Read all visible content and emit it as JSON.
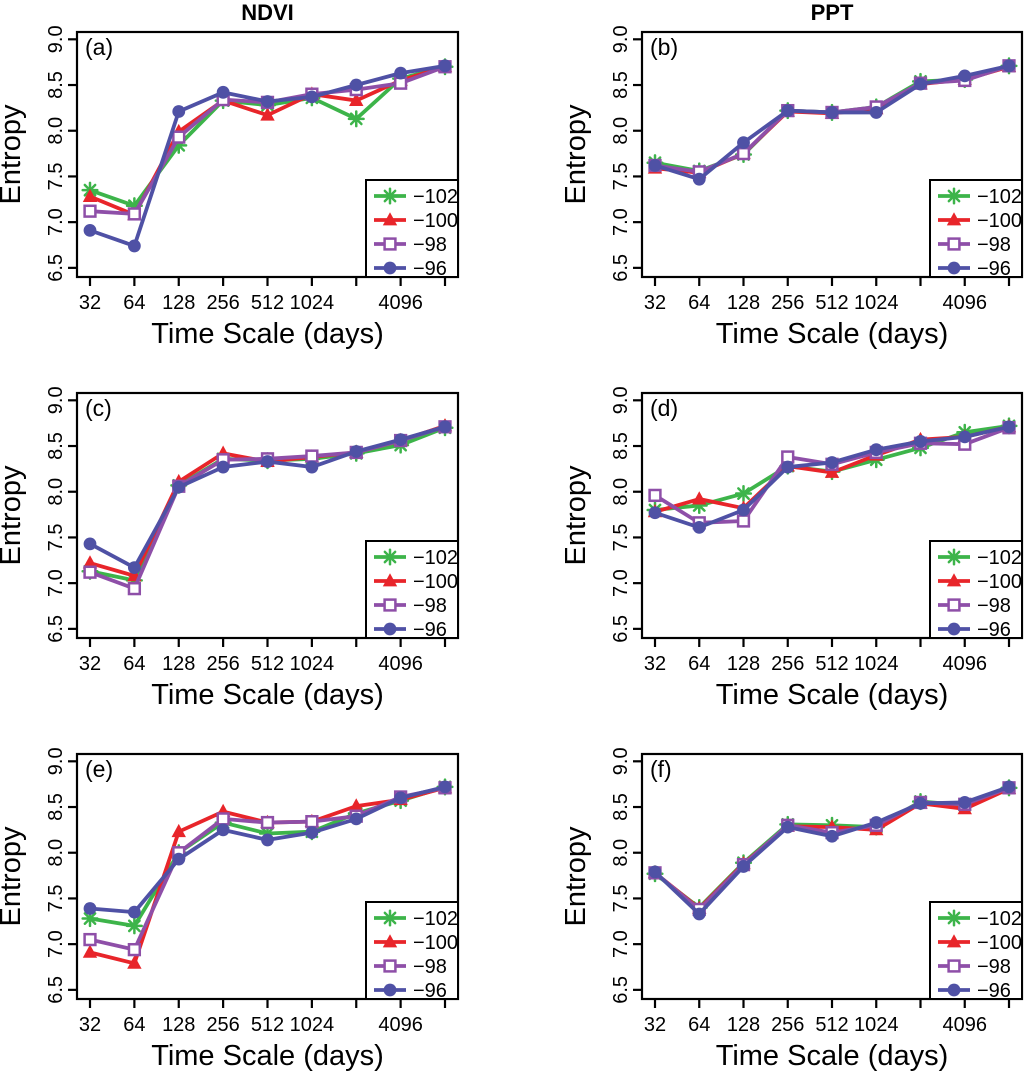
{
  "figure": {
    "column_titles": [
      "NDVI",
      "PPT"
    ],
    "xlabel": "Time Scale (days)",
    "ylabel": "Entropy"
  },
  "axes": {
    "x": [
      32,
      64,
      128,
      256,
      512,
      1024,
      2048,
      4096,
      8192
    ],
    "x_tick_labels": [
      "32",
      "64",
      "128",
      "256",
      "512",
      "1024",
      "",
      "4096",
      ""
    ],
    "x_scale": "log2",
    "yticks": [
      6.5,
      7.0,
      7.5,
      8.0,
      8.5,
      9.0
    ],
    "ylim": [
      6.4,
      9.08
    ],
    "grid": false,
    "legend_position": "bottom-right",
    "box_color": "#000000",
    "text_color": "#000000"
  },
  "chart_data": [
    {
      "type": "line",
      "panel_label": "(a)",
      "column_title": "NDVI",
      "xlabel": "Time Scale (days)",
      "ylabel": "Entropy",
      "series": [
        {
          "name": "−102",
          "color": "#3DB44A",
          "marker": "asterisk",
          "values": [
            7.35,
            7.18,
            7.84,
            8.33,
            8.28,
            8.36,
            8.13,
            8.57,
            8.7
          ]
        },
        {
          "name": "−100",
          "color": "#E8252A",
          "marker": "triangle",
          "values": [
            7.28,
            7.08,
            7.99,
            8.33,
            8.17,
            8.4,
            8.33,
            8.55,
            8.7
          ]
        },
        {
          "name": "−98",
          "color": "#8E4FA8",
          "marker": "square-open",
          "values": [
            7.12,
            7.09,
            7.93,
            8.34,
            8.31,
            8.4,
            8.45,
            8.52,
            8.7
          ]
        },
        {
          "name": "−96",
          "color": "#4F51A5",
          "marker": "circle",
          "values": [
            6.91,
            6.74,
            8.21,
            8.42,
            8.32,
            8.37,
            8.5,
            8.63,
            8.71
          ]
        }
      ]
    },
    {
      "type": "line",
      "panel_label": "(b)",
      "column_title": "PPT",
      "xlabel": "Time Scale (days)",
      "ylabel": "Entropy",
      "series": [
        {
          "name": "−102",
          "color": "#3DB44A",
          "marker": "asterisk",
          "values": [
            7.65,
            7.56,
            7.74,
            8.22,
            8.2,
            8.26,
            8.54,
            8.56,
            8.71
          ]
        },
        {
          "name": "−100",
          "color": "#E8252A",
          "marker": "triangle",
          "values": [
            7.59,
            7.54,
            7.75,
            8.21,
            8.19,
            8.24,
            8.51,
            8.56,
            8.7
          ]
        },
        {
          "name": "−98",
          "color": "#8E4FA8",
          "marker": "square-open",
          "values": [
            7.62,
            7.55,
            7.75,
            8.22,
            8.2,
            8.26,
            8.52,
            8.55,
            8.71
          ]
        },
        {
          "name": "−96",
          "color": "#4F51A5",
          "marker": "circle",
          "values": [
            7.62,
            7.47,
            7.87,
            8.22,
            8.2,
            8.2,
            8.51,
            8.6,
            8.71
          ]
        }
      ]
    },
    {
      "type": "line",
      "panel_label": "(c)",
      "column_title": "",
      "xlabel": "Time Scale (days)",
      "ylabel": "Entropy",
      "series": [
        {
          "name": "−102",
          "color": "#3DB44A",
          "marker": "asterisk",
          "values": [
            7.13,
            7.03,
            8.07,
            8.36,
            8.34,
            8.36,
            8.42,
            8.51,
            8.7
          ]
        },
        {
          "name": "−100",
          "color": "#E8252A",
          "marker": "triangle",
          "values": [
            7.22,
            7.08,
            8.11,
            8.42,
            8.33,
            8.38,
            8.43,
            8.56,
            8.72
          ]
        },
        {
          "name": "−98",
          "color": "#8E4FA8",
          "marker": "square-open",
          "values": [
            7.12,
            6.94,
            8.06,
            8.35,
            8.36,
            8.39,
            8.43,
            8.56,
            8.71
          ]
        },
        {
          "name": "−96",
          "color": "#4F51A5",
          "marker": "circle",
          "values": [
            7.43,
            7.17,
            8.05,
            8.27,
            8.33,
            8.27,
            8.44,
            8.57,
            8.71
          ]
        }
      ]
    },
    {
      "type": "line",
      "panel_label": "(d)",
      "column_title": "",
      "xlabel": "Time Scale (days)",
      "ylabel": "Entropy",
      "series": [
        {
          "name": "−102",
          "color": "#3DB44A",
          "marker": "asterisk",
          "values": [
            7.8,
            7.85,
            7.98,
            8.28,
            8.22,
            8.35,
            8.48,
            8.65,
            8.72
          ]
        },
        {
          "name": "−100",
          "color": "#E8252A",
          "marker": "triangle",
          "values": [
            7.78,
            7.92,
            7.82,
            8.28,
            8.21,
            8.4,
            8.57,
            8.6,
            8.71
          ]
        },
        {
          "name": "−98",
          "color": "#8E4FA8",
          "marker": "square-open",
          "values": [
            7.96,
            7.66,
            7.68,
            8.38,
            8.3,
            8.43,
            8.53,
            8.52,
            8.7
          ]
        },
        {
          "name": "−96",
          "color": "#4F51A5",
          "marker": "circle",
          "values": [
            7.77,
            7.61,
            7.8,
            8.27,
            8.32,
            8.46,
            8.55,
            8.6,
            8.71
          ]
        }
      ]
    },
    {
      "type": "line",
      "panel_label": "(e)",
      "column_title": "",
      "xlabel": "Time Scale (days)",
      "ylabel": "Entropy",
      "series": [
        {
          "name": "−102",
          "color": "#3DB44A",
          "marker": "asterisk",
          "values": [
            7.28,
            7.2,
            8.0,
            8.33,
            8.21,
            8.23,
            8.43,
            8.57,
            8.72
          ]
        },
        {
          "name": "−100",
          "color": "#E8252A",
          "marker": "triangle",
          "values": [
            6.91,
            6.79,
            8.23,
            8.45,
            8.33,
            8.34,
            8.51,
            8.58,
            8.71
          ]
        },
        {
          "name": "−98",
          "color": "#8E4FA8",
          "marker": "square-open",
          "values": [
            7.05,
            6.94,
            8.0,
            8.37,
            8.33,
            8.34,
            8.4,
            8.61,
            8.71
          ]
        },
        {
          "name": "−96",
          "color": "#4F51A5",
          "marker": "circle",
          "values": [
            7.39,
            7.35,
            7.93,
            8.25,
            8.14,
            8.22,
            8.37,
            8.6,
            8.72
          ]
        }
      ]
    },
    {
      "type": "line",
      "panel_label": "(f)",
      "column_title": "",
      "xlabel": "Time Scale (days)",
      "ylabel": "Entropy",
      "series": [
        {
          "name": "−102",
          "color": "#3DB44A",
          "marker": "asterisk",
          "values": [
            7.77,
            7.4,
            7.89,
            8.31,
            8.3,
            8.28,
            8.56,
            8.52,
            8.71
          ]
        },
        {
          "name": "−100",
          "color": "#E8252A",
          "marker": "triangle",
          "values": [
            7.78,
            7.39,
            7.88,
            8.29,
            8.28,
            8.25,
            8.54,
            8.48,
            8.7
          ]
        },
        {
          "name": "−98",
          "color": "#8E4FA8",
          "marker": "square-open",
          "values": [
            7.78,
            7.38,
            7.87,
            8.3,
            8.22,
            8.3,
            8.55,
            8.53,
            8.71
          ]
        },
        {
          "name": "−96",
          "color": "#4F51A5",
          "marker": "circle",
          "values": [
            7.79,
            7.33,
            7.85,
            8.28,
            8.18,
            8.33,
            8.54,
            8.55,
            8.72
          ]
        }
      ]
    }
  ]
}
